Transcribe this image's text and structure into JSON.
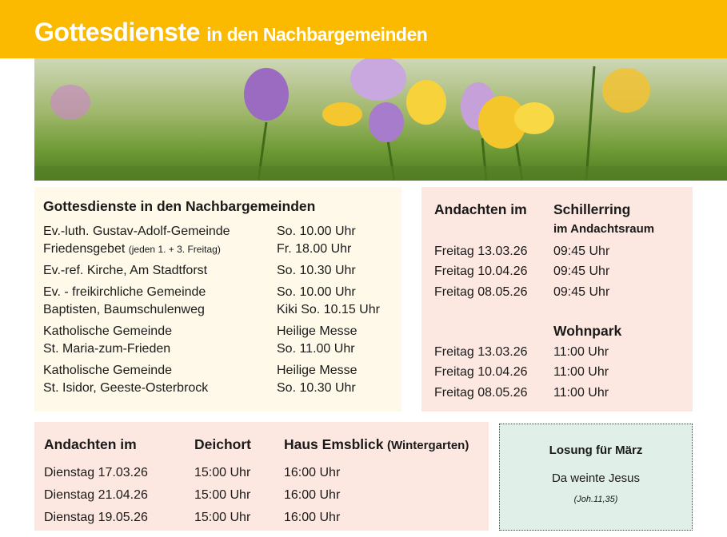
{
  "header": {
    "title": "Gottesdienste",
    "subtitle": "in den Nachbargemeinden"
  },
  "colors": {
    "header": "#fbb900",
    "left_box": "#fef9e9",
    "pink_box": "#fde8e1",
    "losung_box": "#e0efe7"
  },
  "services": {
    "title": "Gottesdienste in den Nachbargemeinden",
    "groups": [
      [
        {
          "name": "Ev.-luth. Gustav-Adolf-Gemeinde",
          "note": "",
          "time": "So. 10.00 Uhr"
        },
        {
          "name": "Friedensgebet",
          "note": "(jeden 1. + 3. Freitag)",
          "time": "Fr. 18.00 Uhr"
        }
      ],
      [
        {
          "name": "Ev.-ref. Kirche, Am Stadtforst",
          "note": "",
          "time": "So. 10.30 Uhr"
        }
      ],
      [
        {
          "name": "Ev. - freikirchliche Gemeinde",
          "note": "",
          "time": "So. 10.00 Uhr"
        },
        {
          "name": "Baptisten, Baumschulenweg",
          "note": "",
          "time": "Kiki So. 10.15 Uhr"
        }
      ],
      [
        {
          "name": "Katholische Gemeinde",
          "note": "",
          "time": "Heilige Messe"
        },
        {
          "name": "St. Maria-zum-Frieden",
          "note": "",
          "time": "So. 11.00 Uhr"
        }
      ],
      [
        {
          "name": "Katholische Gemeinde",
          "note": "",
          "time": "Heilige Messe"
        },
        {
          "name": "St. Isidor, Geeste-Osterbrock",
          "note": "",
          "time": "So. 10.30 Uhr"
        }
      ]
    ]
  },
  "andachten_right": {
    "title": "Andachten im",
    "place1": "Schillerring",
    "place1_sub": "im Andachtsraum",
    "rows1": [
      [
        "Freitag  13.03.26",
        "09:45 Uhr"
      ],
      [
        "Freitag  10.04.26",
        "09:45 Uhr"
      ],
      [
        "Freitag  08.05.26",
        "09:45 Uhr"
      ]
    ],
    "place2": "Wohnpark",
    "rows2": [
      [
        "Freitag  13.03.26",
        "11:00 Uhr"
      ],
      [
        "Freitag  10.04.26",
        "11:00 Uhr"
      ],
      [
        "Freitag  08.05.26",
        "11:00 Uhr"
      ]
    ]
  },
  "andachten_bottom": {
    "title": "Andachten im",
    "col2": "Deichort",
    "col3": "Haus Emsblick",
    "col3_note": "(Wintergarten)",
    "rows": [
      [
        "Dienstag  17.03.26",
        "15:00 Uhr",
        "16:00 Uhr"
      ],
      [
        "Dienstag  21.04.26",
        "15:00 Uhr",
        "16:00 Uhr"
      ],
      [
        "Dienstag  19.05.26",
        "15:00 Uhr",
        "16:00 Uhr"
      ]
    ]
  },
  "losung": {
    "title": "Losung für März",
    "verse": "Da weinte Jesus",
    "reference": "(Joh.11,35)"
  }
}
